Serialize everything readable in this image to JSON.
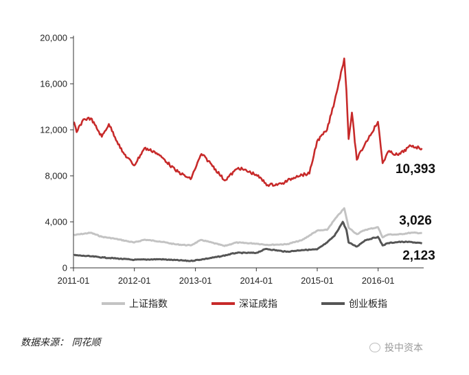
{
  "chart_data": {
    "type": "line",
    "title": "",
    "xlabel": "",
    "ylabel": "",
    "ylim": [
      0,
      20000
    ],
    "xlim": [
      "2011-01-01",
      "2016-09-30"
    ],
    "y_ticks": [
      "0",
      "4,000",
      "8,000",
      "12,000",
      "16,000",
      "20,000"
    ],
    "x_ticks": [
      "2011-01",
      "2012-01",
      "2013-01",
      "2014-01",
      "2015-01",
      "2016-01"
    ],
    "grid": false,
    "legend_position": "bottom",
    "series": [
      {
        "name": "上证指数",
        "color": "#c3c3c3",
        "end_label": "3,026",
        "points": [
          [
            "2011-01-04",
            2850
          ],
          [
            "2011-04-15",
            3050
          ],
          [
            "2011-06-20",
            2700
          ],
          [
            "2011-09-01",
            2550
          ],
          [
            "2011-12-31",
            2200
          ],
          [
            "2012-03-01",
            2450
          ],
          [
            "2012-06-01",
            2300
          ],
          [
            "2012-09-01",
            2050
          ],
          [
            "2012-12-03",
            1950
          ],
          [
            "2013-02-06",
            2430
          ],
          [
            "2013-06-25",
            1900
          ],
          [
            "2013-09-01",
            2200
          ],
          [
            "2013-12-31",
            2110
          ],
          [
            "2014-03-10",
            2000
          ],
          [
            "2014-07-01",
            2050
          ],
          [
            "2014-10-01",
            2400
          ],
          [
            "2014-12-31",
            3230
          ],
          [
            "2015-03-01",
            3300
          ],
          [
            "2015-04-15",
            4200
          ],
          [
            "2015-06-12",
            5180
          ],
          [
            "2015-07-08",
            3500
          ],
          [
            "2015-08-26",
            2930
          ],
          [
            "2015-10-15",
            3300
          ],
          [
            "2015-12-31",
            3540
          ],
          [
            "2016-01-28",
            2650
          ],
          [
            "2016-03-01",
            2900
          ],
          [
            "2016-05-01",
            2900
          ],
          [
            "2016-07-15",
            3050
          ],
          [
            "2016-09-20",
            3026
          ]
        ]
      },
      {
        "name": "深证成指",
        "color": "#c72a2a",
        "end_label": "10,393",
        "points": [
          [
            "2011-01-04",
            12700
          ],
          [
            "2011-01-20",
            11800
          ],
          [
            "2011-03-01",
            12900
          ],
          [
            "2011-04-15",
            13000
          ],
          [
            "2011-06-20",
            11400
          ],
          [
            "2011-08-01",
            12500
          ],
          [
            "2011-10-20",
            10100
          ],
          [
            "2011-12-31",
            8900
          ],
          [
            "2012-03-01",
            10400
          ],
          [
            "2012-05-01",
            10100
          ],
          [
            "2012-07-01",
            9400
          ],
          [
            "2012-09-01",
            8500
          ],
          [
            "2012-12-03",
            7700
          ],
          [
            "2013-02-06",
            9900
          ],
          [
            "2013-04-01",
            9100
          ],
          [
            "2013-06-25",
            7600
          ],
          [
            "2013-09-15",
            8700
          ],
          [
            "2013-12-31",
            8100
          ],
          [
            "2014-03-10",
            7200
          ],
          [
            "2014-06-01",
            7300
          ],
          [
            "2014-09-01",
            8000
          ],
          [
            "2014-11-15",
            8200
          ],
          [
            "2014-12-31",
            11000
          ],
          [
            "2015-03-01",
            12000
          ],
          [
            "2015-04-15",
            14500
          ],
          [
            "2015-06-12",
            18200
          ],
          [
            "2015-06-25",
            15400
          ],
          [
            "2015-07-08",
            11200
          ],
          [
            "2015-07-28",
            13500
          ],
          [
            "2015-08-26",
            9400
          ],
          [
            "2015-10-15",
            10800
          ],
          [
            "2015-12-31",
            12700
          ],
          [
            "2016-01-28",
            9100
          ],
          [
            "2016-03-01",
            10100
          ],
          [
            "2016-05-01",
            9800
          ],
          [
            "2016-07-15",
            10600
          ],
          [
            "2016-09-20",
            10393
          ]
        ]
      },
      {
        "name": "创业板指",
        "color": "#555555",
        "end_label": "2,123",
        "points": [
          [
            "2011-01-04",
            1100
          ],
          [
            "2011-04-15",
            1000
          ],
          [
            "2011-07-01",
            900
          ],
          [
            "2011-12-31",
            700
          ],
          [
            "2012-06-01",
            750
          ],
          [
            "2012-12-03",
            600
          ],
          [
            "2013-03-01",
            780
          ],
          [
            "2013-06-01",
            1000
          ],
          [
            "2013-09-01",
            1300
          ],
          [
            "2013-12-31",
            1300
          ],
          [
            "2014-03-01",
            1650
          ],
          [
            "2014-07-01",
            1400
          ],
          [
            "2014-10-01",
            1550
          ],
          [
            "2014-12-31",
            1600
          ],
          [
            "2015-03-01",
            2200
          ],
          [
            "2015-04-15",
            2800
          ],
          [
            "2015-06-03",
            4000
          ],
          [
            "2015-06-25",
            3300
          ],
          [
            "2015-07-08",
            2200
          ],
          [
            "2015-08-26",
            1850
          ],
          [
            "2015-10-15",
            2400
          ],
          [
            "2015-12-31",
            2700
          ],
          [
            "2016-01-28",
            1950
          ],
          [
            "2016-03-01",
            2150
          ],
          [
            "2016-05-01",
            2250
          ],
          [
            "2016-07-15",
            2250
          ],
          [
            "2016-09-20",
            2123
          ]
        ]
      }
    ]
  },
  "footer": {
    "source": "数据来源： 同花顺",
    "watermark": "投中资本"
  }
}
